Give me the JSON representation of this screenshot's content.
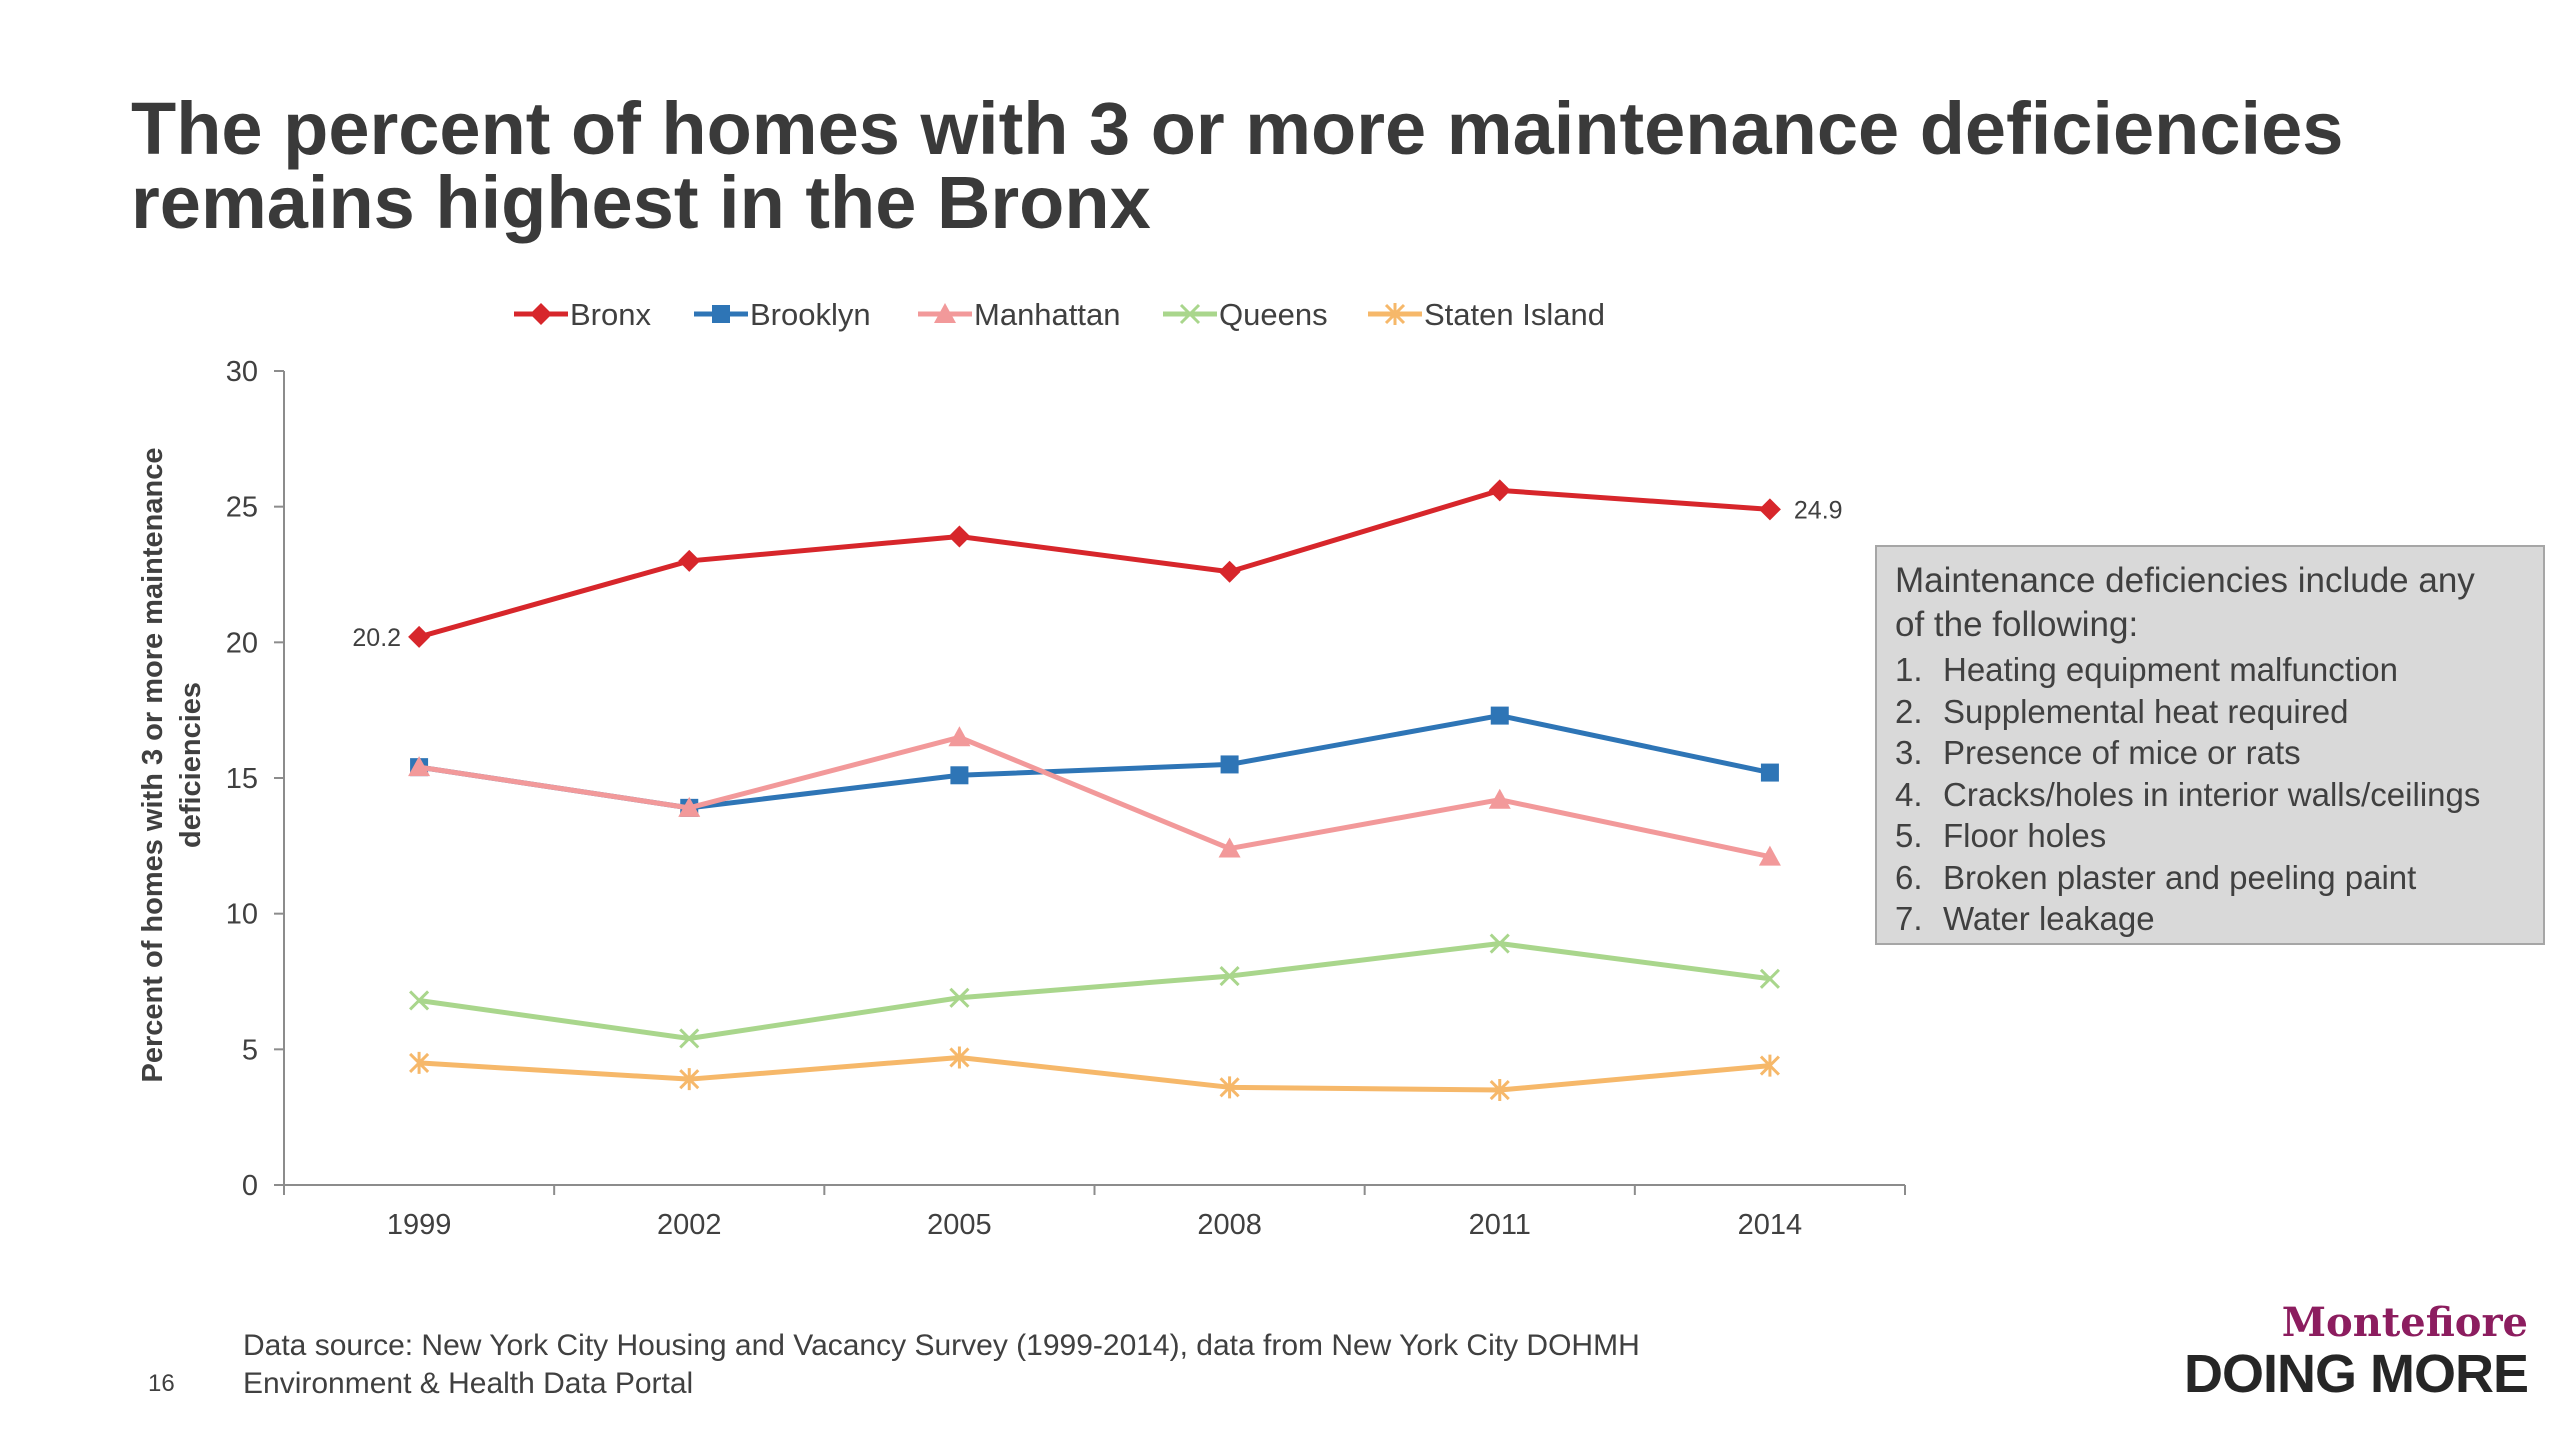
{
  "slide": {
    "title_line1": "The percent of homes with 3 or more maintenance deficiencies",
    "title_line2": "remains highest in the Bronx",
    "page_number": "16",
    "source_line1": "Data source: New York City Housing and Vacancy Survey (1999-2014), data from New York City DOHMH",
    "source_line2": "Environment & Health Data Portal"
  },
  "callout": {
    "heading_line1": "Maintenance deficiencies include any",
    "heading_line2": "of the following:",
    "items": [
      {
        "num": "1.",
        "text": "Heating equipment malfunction"
      },
      {
        "num": "2.",
        "text": "Supplemental heat required"
      },
      {
        "num": "3.",
        "text": "Presence of mice or rats"
      },
      {
        "num": "4.",
        "text": "Cracks/holes in interior walls/ceilings"
      },
      {
        "num": "5.",
        "text": "Floor holes"
      },
      {
        "num": "6.",
        "text": "Broken plaster and peeling paint"
      },
      {
        "num": "7.",
        "text": "Water leakage"
      }
    ]
  },
  "logo": {
    "name": "Montefiore",
    "tagline": "DOING MORE"
  },
  "chart_data": {
    "type": "line",
    "title": "",
    "xlabel": "",
    "ylabel": "Percent of homes with 3 or more maintenance deficiencies",
    "ylabel_line1": "Percent of homes with 3 or more maintenance",
    "ylabel_line2": "deficiencies",
    "x": [
      "1999",
      "2002",
      "2005",
      "2008",
      "2011",
      "2014"
    ],
    "ylim": [
      0,
      30
    ],
    "yticks": [
      0,
      5,
      10,
      15,
      20,
      25,
      30
    ],
    "grid": false,
    "legend_position": "top",
    "series": [
      {
        "name": "Bronx",
        "color": "#d7262b",
        "marker": "diamond",
        "values": [
          20.2,
          23.0,
          23.9,
          22.6,
          25.6,
          24.9
        ]
      },
      {
        "name": "Brooklyn",
        "color": "#2e75b6",
        "marker": "square",
        "values": [
          15.4,
          13.9,
          15.1,
          15.5,
          17.3,
          15.2
        ]
      },
      {
        "name": "Manhattan",
        "color": "#f2999a",
        "marker": "triangle",
        "values": [
          15.4,
          13.9,
          16.5,
          12.4,
          14.2,
          12.1
        ]
      },
      {
        "name": "Queens",
        "color": "#a9d68c",
        "marker": "x",
        "values": [
          6.8,
          5.4,
          6.9,
          7.7,
          8.9,
          7.6
        ]
      },
      {
        "name": "Staten Island",
        "color": "#f6b86a",
        "marker": "star",
        "values": [
          4.5,
          3.9,
          4.7,
          3.6,
          3.5,
          4.4
        ]
      }
    ],
    "data_labels": [
      {
        "series": "Bronx",
        "x": "1999",
        "text": "20.2",
        "side": "left"
      },
      {
        "series": "Bronx",
        "x": "2014",
        "text": "24.9",
        "side": "right"
      }
    ]
  }
}
